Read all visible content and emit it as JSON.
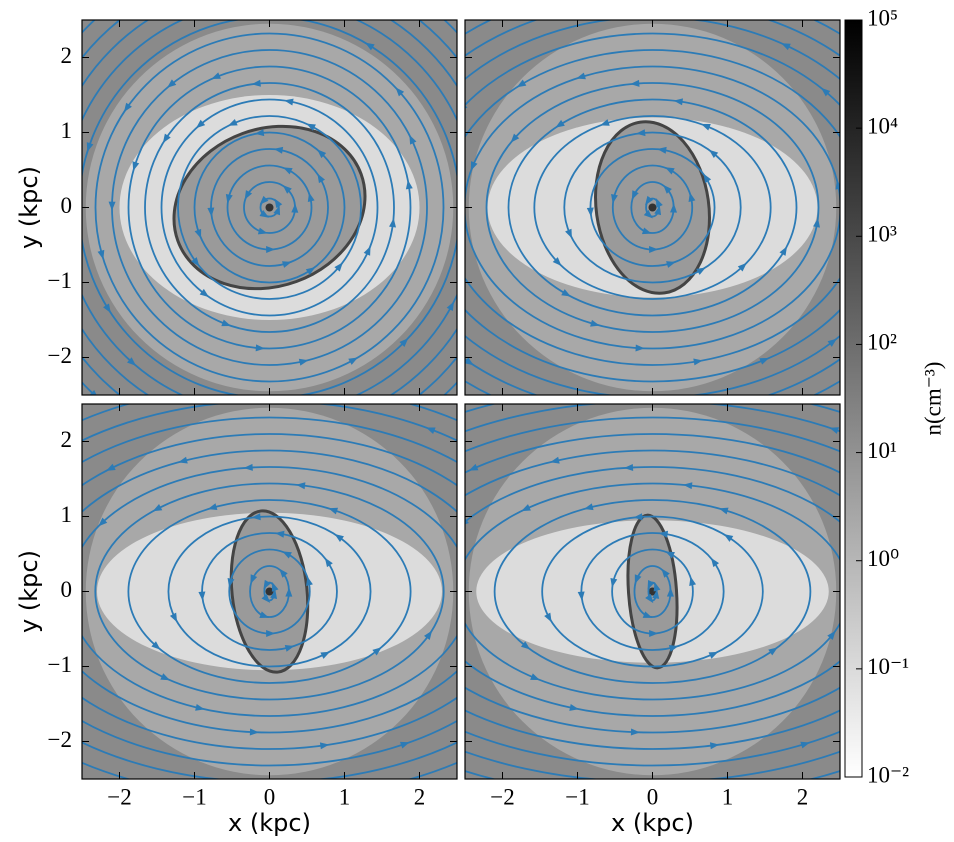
{
  "chart_data": {
    "type": "image-grid",
    "xlim": [
      -2.5,
      2.5
    ],
    "ylim": [
      -2.5,
      2.5
    ],
    "xticks": [
      {
        "value": -2,
        "label": "−2"
      },
      {
        "value": -1,
        "label": "−1"
      },
      0,
      1,
      2
    ],
    "yticks": [
      {
        "value": -2,
        "label": "−2"
      },
      {
        "value": -1,
        "label": "−1"
      },
      0,
      1,
      2
    ],
    "xlabel": "x  (kpc)",
    "ylabel": "y  (kpc)",
    "stream_color": "#2c7bb6",
    "colorbar": {
      "label": "n(cm⁻³)",
      "log": true,
      "lim": [
        0.01,
        100000
      ],
      "colors": [
        "#ffffff",
        "#000000"
      ],
      "ticks": [
        {
          "value": 0.01,
          "label": "10⁻²"
        },
        {
          "value": 0.1,
          "label": "10⁻¹"
        },
        {
          "value": 1,
          "label": "10⁰"
        },
        {
          "value": 10,
          "label": "10¹"
        },
        {
          "value": 100,
          "label": "10²"
        },
        {
          "value": 1000,
          "label": "10³"
        },
        {
          "value": 10000,
          "label": "10⁴"
        },
        {
          "value": 100000,
          "label": "10⁵"
        }
      ]
    }
  }
}
